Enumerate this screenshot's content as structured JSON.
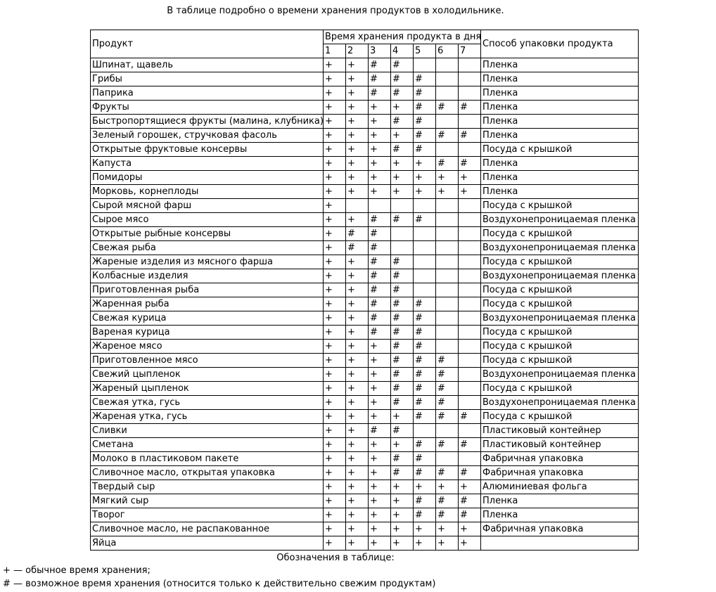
{
  "page": {
    "title": "В таблице подробно о времени хранения продуктов в холодильнике."
  },
  "table": {
    "product_header": "Продукт",
    "days_header": "Время хранения продукта в днях",
    "day_numbers": [
      "1",
      "2",
      "3",
      "4",
      "5",
      "6",
      "7"
    ],
    "packaging_header": "Способ упаковки продукта",
    "rows": [
      {
        "product": "Шпинат, щавель",
        "days": [
          "+",
          "+",
          "#",
          "#",
          "",
          "",
          ""
        ],
        "packaging": "Пленка"
      },
      {
        "product": "Грибы",
        "days": [
          "+",
          "+",
          "#",
          "#",
          "#",
          "",
          ""
        ],
        "packaging": "Пленка"
      },
      {
        "product": "Паприка",
        "days": [
          "+",
          "+",
          "#",
          "#",
          "#",
          "",
          ""
        ],
        "packaging": "Пленка"
      },
      {
        "product": "Фрукты",
        "days": [
          "+",
          "+",
          "+",
          "+",
          "#",
          "#",
          "#"
        ],
        "packaging": "Пленка"
      },
      {
        "product": "Быстропортящиеся фрукты (малина, клубника)",
        "days": [
          "+",
          "+",
          "+",
          "#",
          "#",
          "",
          ""
        ],
        "packaging": "Пленка"
      },
      {
        "product": "Зеленый горошек, стручковая фасоль",
        "days": [
          "+",
          "+",
          "+",
          "+",
          "#",
          "#",
          "#"
        ],
        "packaging": "Пленка"
      },
      {
        "product": "Открытые фруктовые консервы",
        "days": [
          "+",
          "+",
          "+",
          "#",
          "#",
          "",
          ""
        ],
        "packaging": "Посуда с крышкой"
      },
      {
        "product": "Капуста",
        "days": [
          "+",
          "+",
          "+",
          "+",
          "+",
          "#",
          "#"
        ],
        "packaging": "Пленка"
      },
      {
        "product": "Помидоры",
        "days": [
          "+",
          "+",
          "+",
          "+",
          "+",
          "+",
          "+"
        ],
        "packaging": "Пленка"
      },
      {
        "product": "Морковь, корнеплоды",
        "days": [
          "+",
          "+",
          "+",
          "+",
          "+",
          "+",
          "+"
        ],
        "packaging": "Пленка"
      },
      {
        "product": "Сырой мясной фарш",
        "days": [
          "+",
          "",
          "",
          "",
          "",
          "",
          ""
        ],
        "packaging": "Посуда с крышкой"
      },
      {
        "product": "Сырое мясо",
        "days": [
          "+",
          "+",
          "#",
          "#",
          "#",
          "",
          ""
        ],
        "packaging": "Воздухонепроницаемая пленка"
      },
      {
        "product": "Открытые рыбные консервы",
        "days": [
          "+",
          "#",
          "#",
          "",
          "",
          "",
          ""
        ],
        "packaging": "Посуда с крышкой"
      },
      {
        "product": "Свежая рыба",
        "days": [
          "+",
          "#",
          "#",
          "",
          "",
          "",
          ""
        ],
        "packaging": "Воздухонепроницаемая пленка"
      },
      {
        "product": "Жареные изделия из мясного фарша",
        "days": [
          "+",
          "+",
          "#",
          "#",
          "",
          "",
          ""
        ],
        "packaging": "Посуда с крышкой"
      },
      {
        "product": "Колбасные изделия",
        "days": [
          "+",
          "+",
          "#",
          "#",
          "",
          "",
          ""
        ],
        "packaging": "Воздухонепроницаемая пленка"
      },
      {
        "product": "Приготовленная рыба",
        "days": [
          "+",
          "+",
          "#",
          "#",
          "",
          "",
          ""
        ],
        "packaging": "Посуда с крышкой"
      },
      {
        "product": "Жаренная рыба",
        "days": [
          "+",
          "+",
          "#",
          "#",
          "#",
          "",
          ""
        ],
        "packaging": "Посуда с крышкой"
      },
      {
        "product": "Свежая курица",
        "days": [
          "+",
          "+",
          "#",
          "#",
          "#",
          "",
          ""
        ],
        "packaging": "Воздухонепроницаемая пленка"
      },
      {
        "product": "Вареная курица",
        "days": [
          "+",
          "+",
          "#",
          "#",
          "#",
          "",
          ""
        ],
        "packaging": "Посуда с крышкой"
      },
      {
        "product": "Жареное мясо",
        "days": [
          "+",
          "+",
          "+",
          "#",
          "#",
          "",
          ""
        ],
        "packaging": "Посуда с крышкой"
      },
      {
        "product": "Приготовленное мясо",
        "days": [
          "+",
          "+",
          "+",
          "#",
          "#",
          "#",
          ""
        ],
        "packaging": "Посуда с крышкой"
      },
      {
        "product": "Свежий цыпленок",
        "days": [
          "+",
          "+",
          "+",
          "#",
          "#",
          "#",
          ""
        ],
        "packaging": "Воздухонепроницаемая пленка"
      },
      {
        "product": "Жареный цыпленок",
        "days": [
          "+",
          "+",
          "+",
          "#",
          "#",
          "#",
          ""
        ],
        "packaging": "Посуда с крышкой"
      },
      {
        "product": "Свежая утка, гусь",
        "days": [
          "+",
          "+",
          "+",
          "#",
          "#",
          "#",
          ""
        ],
        "packaging": "Воздухонепроницаемая пленка"
      },
      {
        "product": "Жареная утка, гусь",
        "days": [
          "+",
          "+",
          "+",
          "+",
          "#",
          "#",
          "#"
        ],
        "packaging": "Посуда с крышкой"
      },
      {
        "product": "Сливки",
        "days": [
          "+",
          "+",
          "#",
          "#",
          "",
          "",
          ""
        ],
        "packaging": "Пластиковый контейнер"
      },
      {
        "product": "Сметана",
        "days": [
          "+",
          "+",
          "+",
          "+",
          "#",
          "#",
          "#"
        ],
        "packaging": "Пластиковый контейнер"
      },
      {
        "product": "Молоко в пластиковом пакете",
        "days": [
          "+",
          "+",
          "+",
          "#",
          "#",
          "",
          ""
        ],
        "packaging": "Фабричная упаковка"
      },
      {
        "product": "Сливочное масло, открытая упаковка",
        "days": [
          "+",
          "+",
          "+",
          "#",
          "#",
          "#",
          "#"
        ],
        "packaging": "Фабричная упаковка"
      },
      {
        "product": "Твердый сыр",
        "days": [
          "+",
          "+",
          "+",
          "+",
          "+",
          "+",
          "+"
        ],
        "packaging": "Алюминиевая фольга"
      },
      {
        "product": "Мягкий сыр",
        "days": [
          "+",
          "+",
          "+",
          "+",
          "#",
          "#",
          "#"
        ],
        "packaging": "Пленка"
      },
      {
        "product": "Творог",
        "days": [
          "+",
          "+",
          "+",
          "+",
          "#",
          "#",
          "#"
        ],
        "packaging": "Пленка"
      },
      {
        "product": "Сливочное масло, не распакованное",
        "days": [
          "+",
          "+",
          "+",
          "+",
          "+",
          "+",
          "+"
        ],
        "packaging": "Фабричная упаковка"
      },
      {
        "product": "Яйца",
        "days": [
          "+",
          "+",
          "+",
          "+",
          "+",
          "+",
          "+"
        ],
        "packaging": ""
      }
    ]
  },
  "legend": {
    "heading": "Обозначения в таблице:",
    "items": [
      "+ — обычное время хранения;",
      "# — возможное время хранения (относится только к действительно свежим продуктам)"
    ]
  }
}
